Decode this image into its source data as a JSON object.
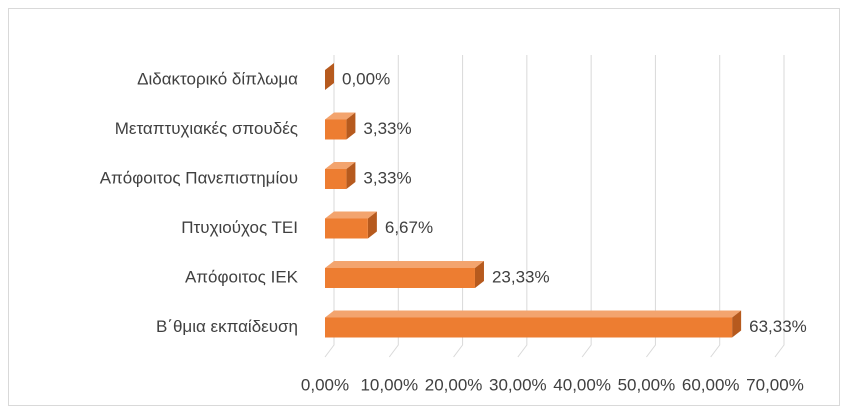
{
  "chart_data": {
    "type": "bar3d-horizontal",
    "categories": [
      "Διδακτορικό δίπλωμα",
      "Μεταπτυχιακές σπουδές",
      "Απόφοιτος Πανεπιστημίου",
      "Πτυχιούχος ΤΕΙ",
      "Απόφοιτος ΙΕΚ",
      "Β΄θμια εκπαίδευση"
    ],
    "values": [
      0,
      3.33,
      3.33,
      6.67,
      23.33,
      63.33
    ],
    "value_labels": [
      "0,00%",
      "3,33%",
      "3,33%",
      "6,67%",
      "23,33%",
      "63,33%"
    ],
    "color": "#ed7d31",
    "xlim": [
      0,
      70
    ],
    "xticks": [
      {
        "value": 0,
        "label": "0,00%"
      },
      {
        "value": 10,
        "label": "10,00%"
      },
      {
        "value": 20,
        "label": "20,00%"
      },
      {
        "value": 30,
        "label": "30,00%"
      },
      {
        "value": 40,
        "label": "40,00%"
      },
      {
        "value": 50,
        "label": "50,00%"
      },
      {
        "value": 60,
        "label": "60,00%"
      },
      {
        "value": 70,
        "label": "70,00%"
      }
    ],
    "grid": true
  }
}
